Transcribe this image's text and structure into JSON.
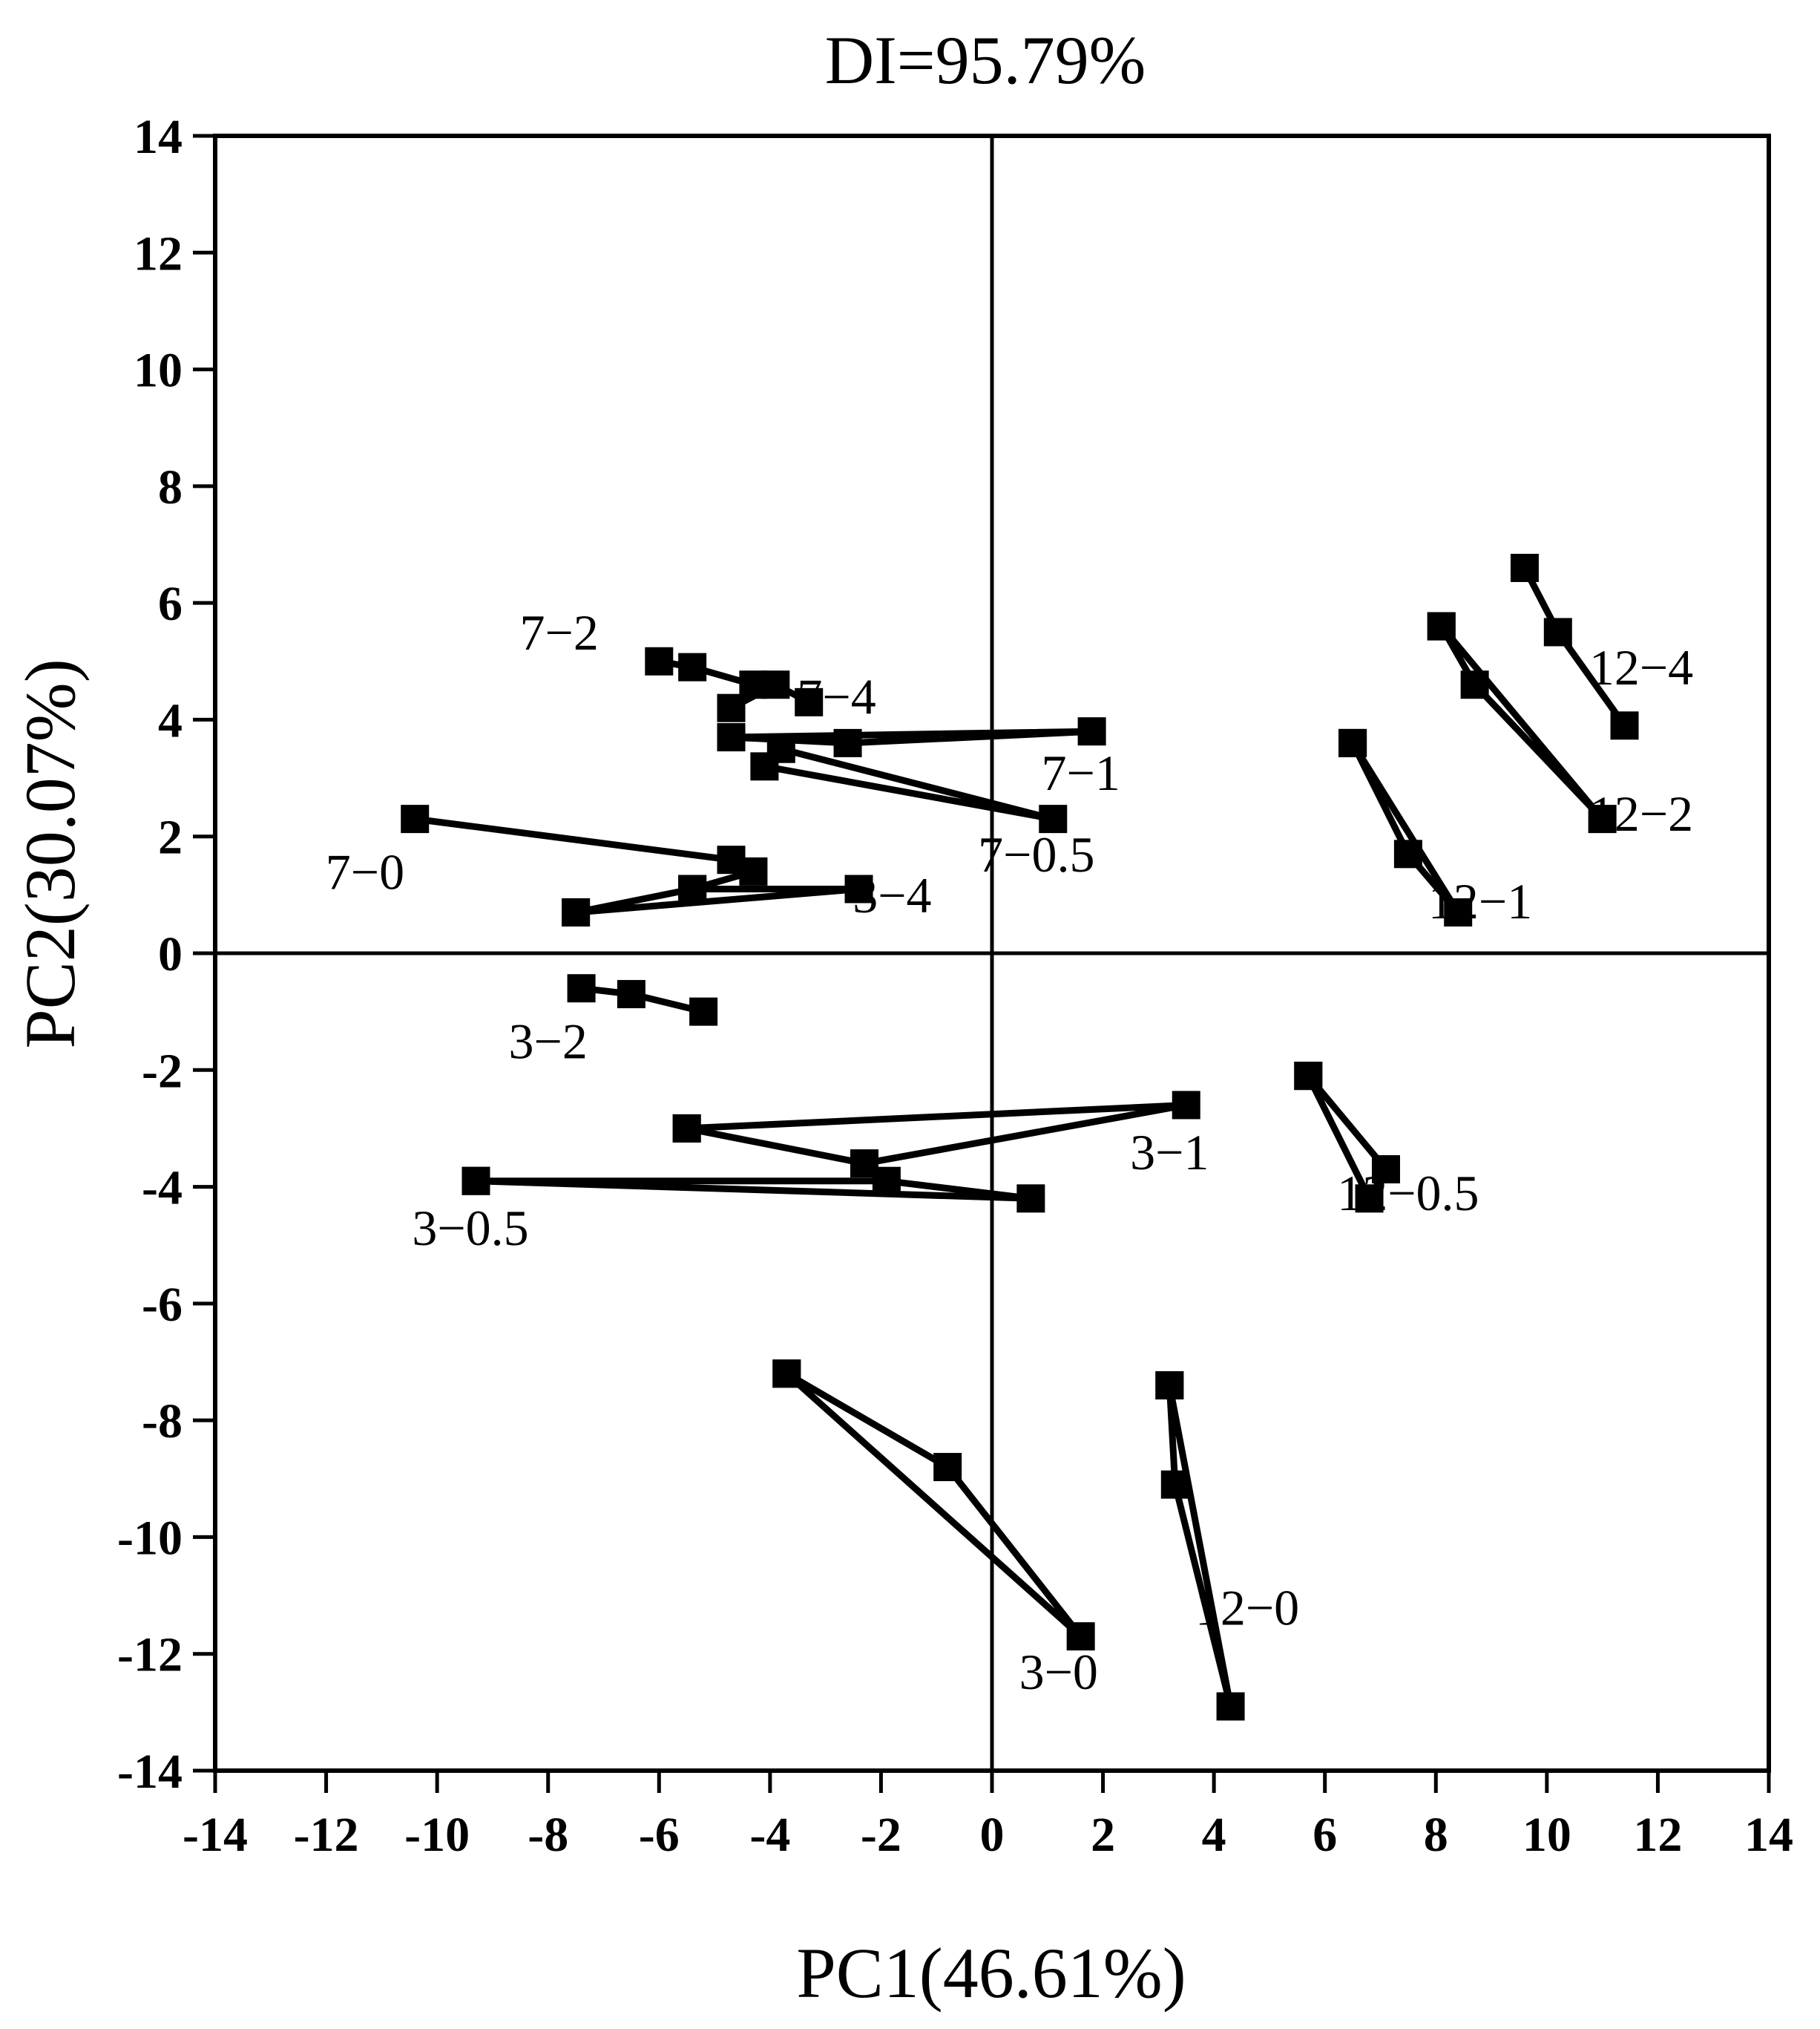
{
  "chart_data": {
    "type": "scatter",
    "title": "DI=95.79%",
    "xlabel": "PC1(46.61%)",
    "ylabel": "PC2(30.07%)",
    "xlim": [
      -14,
      14
    ],
    "ylim": [
      -14,
      14
    ],
    "xticks": [
      "-14",
      "-12",
      "-10",
      "-8",
      "-6",
      "-4",
      "-2",
      "0",
      "2",
      "4",
      "6",
      "8",
      "10",
      "12",
      "14"
    ],
    "yticks": [
      "14",
      "12",
      "10",
      "8",
      "6",
      "4",
      "2",
      "0",
      "-2",
      "-4",
      "-6",
      "-8",
      "-10",
      "-12",
      "-14"
    ],
    "reference_lines": {
      "x": 0,
      "y": 0
    },
    "grid": false,
    "series": [
      {
        "name": "3-0",
        "label_at": [
          1.2,
          -12.6
        ],
        "points": [
          [
            -3.7,
            -7.2
          ],
          [
            -0.8,
            -8.8
          ],
          [
            1.6,
            -11.7
          ],
          [
            -3.7,
            -7.2
          ]
        ]
      },
      {
        "name": "3-0.5",
        "label_at": [
          -9.4,
          -5.0
        ],
        "points": [
          [
            -9.3,
            -3.9
          ],
          [
            -1.9,
            -3.9
          ],
          [
            0.7,
            -4.2
          ],
          [
            -9.3,
            -3.9
          ]
        ]
      },
      {
        "name": "3-1",
        "label_at": [
          3.2,
          -3.7
        ],
        "points": [
          [
            -5.5,
            -3.0
          ],
          [
            -2.3,
            -3.6
          ],
          [
            3.5,
            -2.6
          ],
          [
            -5.5,
            -3.0
          ]
        ]
      },
      {
        "name": "3-2",
        "label_at": [
          -8.0,
          -1.8
        ],
        "points": [
          [
            -7.4,
            -0.6
          ],
          [
            -6.5,
            -0.7
          ],
          [
            -5.2,
            -1.0
          ]
        ]
      },
      {
        "name": "3-4",
        "label_at": [
          -1.8,
          0.7
        ],
        "points": [
          [
            -7.5,
            0.7
          ],
          [
            -5.4,
            1.1
          ],
          [
            -2.4,
            1.1
          ],
          [
            -7.5,
            0.7
          ]
        ]
      },
      {
        "name": "7-0",
        "label_at": [
          -11.3,
          1.1
        ],
        "points": [
          [
            -10.4,
            2.3
          ],
          [
            -4.7,
            1.6
          ],
          [
            -4.3,
            1.4
          ],
          [
            -5.4,
            1.1
          ]
        ]
      },
      {
        "name": "7-0.5",
        "label_at": [
          0.8,
          1.4
        ],
        "points": [
          [
            -4.1,
            3.2
          ],
          [
            1.1,
            2.3
          ],
          [
            -3.8,
            3.5
          ]
        ]
      },
      {
        "name": "7-1",
        "label_at": [
          1.6,
          2.8
        ],
        "points": [
          [
            -4.7,
            3.7
          ],
          [
            -2.6,
            3.6
          ],
          [
            1.8,
            3.8
          ],
          [
            -4.7,
            3.7
          ]
        ]
      },
      {
        "name": "7-2",
        "label_at": [
          -7.8,
          5.2
        ],
        "points": [
          [
            -6.0,
            5.0
          ],
          [
            -5.4,
            4.9
          ],
          [
            -4.3,
            4.6
          ]
        ]
      },
      {
        "name": "7-4",
        "label_at": [
          -2.8,
          4.1
        ],
        "points": [
          [
            -4.7,
            4.2
          ],
          [
            -3.9,
            4.6
          ],
          [
            -3.3,
            4.3
          ]
        ]
      },
      {
        "name": "12-0",
        "label_at": [
          4.6,
          -11.5
        ],
        "points": [
          [
            3.2,
            -7.4
          ],
          [
            3.3,
            -9.1
          ],
          [
            4.3,
            -12.9
          ],
          [
            3.2,
            -7.4
          ]
        ]
      },
      {
        "name": "12-0.5",
        "label_at": [
          7.5,
          -4.4
        ],
        "points": [
          [
            5.7,
            -2.1
          ],
          [
            7.1,
            -3.7
          ],
          [
            6.8,
            -4.2
          ],
          [
            5.7,
            -2.1
          ]
        ]
      },
      {
        "name": "12-1",
        "label_at": [
          8.8,
          0.6
        ],
        "points": [
          [
            6.5,
            3.6
          ],
          [
            7.5,
            1.7
          ],
          [
            8.4,
            0.7
          ],
          [
            6.5,
            3.6
          ]
        ]
      },
      {
        "name": "12-2",
        "label_at": [
          11.7,
          2.1
        ],
        "points": [
          [
            8.1,
            5.6
          ],
          [
            8.7,
            4.6
          ],
          [
            11.0,
            2.3
          ],
          [
            8.1,
            5.6
          ]
        ]
      },
      {
        "name": "12-4",
        "label_at": [
          11.7,
          4.6
        ],
        "points": [
          [
            9.6,
            6.6
          ],
          [
            10.2,
            5.5
          ],
          [
            11.4,
            3.9
          ]
        ]
      }
    ]
  }
}
